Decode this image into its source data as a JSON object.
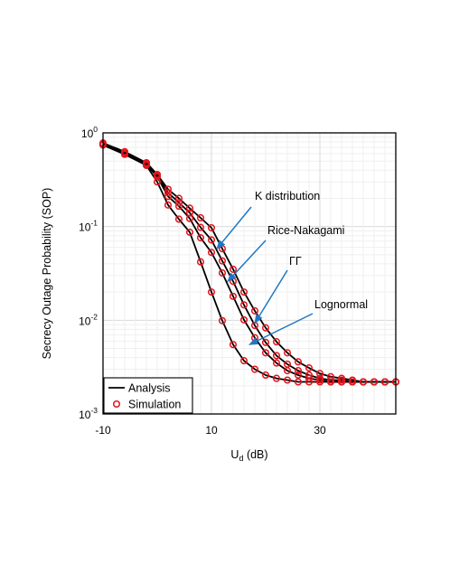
{
  "chart_data": {
    "type": "line",
    "xlabel": "U",
    "xlabel_sub": "d",
    "xlabel_unit": "(dB)",
    "ylabel": "Secrecy Outage Probability (SOP)",
    "xlim": [
      -10,
      44
    ],
    "ylim": [
      0.001,
      1
    ],
    "yscale": "log",
    "grid": true,
    "x_ticks": [
      {
        "label": "-10",
        "value": -10
      },
      {
        "label": "10",
        "value": 10
      },
      {
        "label": "30",
        "value": 30
      }
    ],
    "y_ticks": [
      {
        "base": "10",
        "exp": "0",
        "value": 1
      },
      {
        "base": "10",
        "exp": "-1",
        "value": 0.1
      },
      {
        "base": "10",
        "exp": "-2",
        "value": 0.01
      },
      {
        "base": "10",
        "exp": "-3",
        "value": 0.001
      }
    ],
    "legend_position": "bottom-left",
    "legend": [
      {
        "label": "Analysis",
        "marker": "line"
      },
      {
        "label": "Simulation",
        "marker": "circle"
      }
    ],
    "colors": {
      "analysis": "#000000",
      "simulation": "#e3141c",
      "annotation_arrow": "#1f77c4"
    },
    "series": [
      {
        "x": [
          -10,
          -6,
          -2,
          0,
          2,
          4,
          6,
          8,
          10,
          12,
          14,
          16,
          18,
          20,
          22,
          24,
          26,
          28,
          30,
          32,
          34,
          36,
          38,
          40,
          42,
          44
        ],
        "values": [
          0.78,
          0.63,
          0.48,
          0.36,
          0.25,
          0.2,
          0.157,
          0.124,
          0.097,
          0.058,
          0.035,
          0.02,
          0.0126,
          0.0083,
          0.0059,
          0.0045,
          0.0036,
          0.0031,
          0.0027,
          0.0025,
          0.0024,
          0.0023,
          0.0022,
          0.0022,
          0.0022,
          0.0022
        ]
      },
      {
        "x": [
          -10,
          -6,
          -2,
          0,
          2,
          4,
          6,
          8,
          10,
          12,
          14,
          16,
          18,
          20,
          22,
          24,
          26,
          28,
          30,
          32,
          34,
          36,
          38,
          40,
          42,
          44
        ],
        "values": [
          0.76,
          0.61,
          0.47,
          0.35,
          0.23,
          0.18,
          0.14,
          0.098,
          0.072,
          0.043,
          0.026,
          0.0146,
          0.0088,
          0.0058,
          0.0042,
          0.0034,
          0.0029,
          0.0026,
          0.0024,
          0.0023,
          0.0023,
          0.0022,
          0.0022,
          0.0022,
          0.0022,
          0.0022
        ]
      },
      {
        "x": [
          -10,
          -6,
          -2,
          0,
          2,
          4,
          6,
          8,
          10,
          12,
          14,
          16,
          18,
          20,
          22,
          24,
          26,
          28,
          30,
          32,
          34,
          36,
          38,
          40,
          42,
          44
        ],
        "values": [
          0.75,
          0.6,
          0.46,
          0.34,
          0.21,
          0.165,
          0.122,
          0.076,
          0.053,
          0.032,
          0.018,
          0.0101,
          0.0065,
          0.0045,
          0.0035,
          0.0029,
          0.0026,
          0.0024,
          0.0023,
          0.0022,
          0.0022,
          0.0022,
          0.0022,
          0.0022,
          0.0022,
          0.0022
        ]
      },
      {
        "x": [
          -10,
          -6,
          -2,
          0,
          2,
          4,
          6,
          8,
          10,
          12,
          14,
          16,
          18,
          20,
          22,
          24,
          26,
          28,
          30,
          32,
          34,
          36,
          38,
          40,
          42,
          44
        ],
        "values": [
          0.74,
          0.59,
          0.45,
          0.3,
          0.17,
          0.12,
          0.087,
          0.042,
          0.02,
          0.0099,
          0.0055,
          0.0037,
          0.003,
          0.0026,
          0.0024,
          0.0023,
          0.0022,
          0.0022,
          0.0022,
          0.0022,
          0.0022,
          0.0022,
          0.0022,
          0.0022,
          0.0022,
          0.0022
        ]
      }
    ],
    "annotations": [
      {
        "text": "K distribution",
        "arrow_to": [
          11,
          0.058
        ]
      },
      {
        "text": "Rice-Nakagami",
        "arrow_to": [
          13,
          0.026
        ]
      },
      {
        "text": "ΓΓ",
        "arrow_to": [
          18,
          0.0093
        ]
      },
      {
        "text": "Lognormal",
        "arrow_to": [
          17,
          0.0055
        ]
      }
    ]
  }
}
